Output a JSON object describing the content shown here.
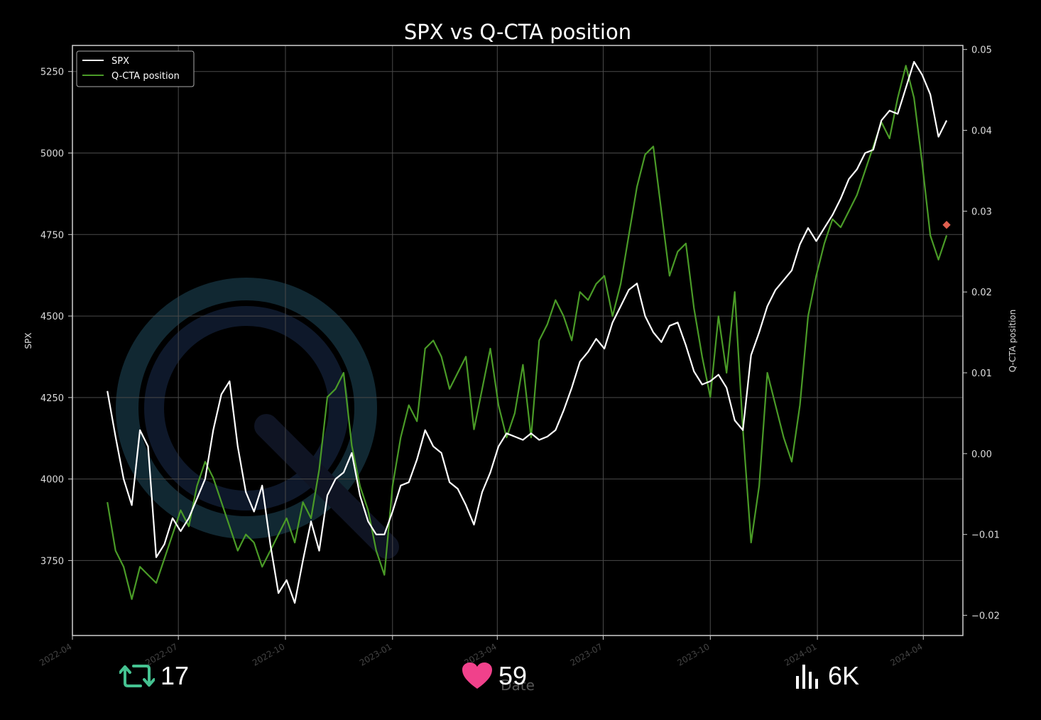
{
  "chart_data": {
    "type": "line",
    "title": "SPX vs Q-CTA position",
    "xlabel": "Date",
    "ylabel": "SPX",
    "y2label": "Q-CTA position",
    "xlim": [
      "2022-04-01",
      "2024-05-05"
    ],
    "ylim": [
      3520,
      5330
    ],
    "y2lim": [
      -0.0225,
      0.0505
    ],
    "x_ticks": [
      "2022-04",
      "2022-07",
      "2022-10",
      "2023-01",
      "2023-04",
      "2023-07",
      "2023-10",
      "2024-01",
      "2024-04"
    ],
    "y_ticks": [
      "3750",
      "4000",
      "4250",
      "4500",
      "4750",
      "5000",
      "5250"
    ],
    "y2_ticks": [
      "−0.02",
      "−0.01",
      "0.00",
      "0.01",
      "0.02",
      "0.03",
      "0.04",
      "0.05"
    ],
    "y_tick_values": [
      3750,
      4000,
      4250,
      4500,
      4750,
      5000,
      5250
    ],
    "y2_tick_values": [
      -0.02,
      -0.01,
      0,
      0.01,
      0.02,
      0.03,
      0.04,
      0.05
    ],
    "grid": true,
    "legend_position": "top-left",
    "background": "#000000",
    "series": [
      {
        "name": "SPX",
        "axis": "left",
        "color": "#ffffff",
        "x": [
          "2022-05-01",
          "2022-05-08",
          "2022-05-15",
          "2022-05-22",
          "2022-05-29",
          "2022-06-05",
          "2022-06-12",
          "2022-06-19",
          "2022-06-26",
          "2022-07-03",
          "2022-07-10",
          "2022-07-17",
          "2022-07-24",
          "2022-07-31",
          "2022-08-07",
          "2022-08-14",
          "2022-08-21",
          "2022-08-28",
          "2022-09-04",
          "2022-09-11",
          "2022-09-18",
          "2022-09-25",
          "2022-10-02",
          "2022-10-09",
          "2022-10-16",
          "2022-10-23",
          "2022-10-30",
          "2022-11-06",
          "2022-11-13",
          "2022-11-20",
          "2022-11-27",
          "2022-12-04",
          "2022-12-11",
          "2022-12-18",
          "2022-12-25",
          "2023-01-01",
          "2023-01-08",
          "2023-01-15",
          "2023-01-22",
          "2023-01-29",
          "2023-02-05",
          "2023-02-12",
          "2023-02-19",
          "2023-02-26",
          "2023-03-05",
          "2023-03-12",
          "2023-03-19",
          "2023-03-26",
          "2023-04-02",
          "2023-04-09",
          "2023-04-16",
          "2023-04-23",
          "2023-04-30",
          "2023-05-07",
          "2023-05-14",
          "2023-05-21",
          "2023-05-28",
          "2023-06-04",
          "2023-06-11",
          "2023-06-18",
          "2023-06-25",
          "2023-07-02",
          "2023-07-09",
          "2023-07-16",
          "2023-07-23",
          "2023-07-30",
          "2023-08-06",
          "2023-08-13",
          "2023-08-20",
          "2023-08-27",
          "2023-09-03",
          "2023-09-10",
          "2023-09-17",
          "2023-09-24",
          "2023-10-01",
          "2023-10-08",
          "2023-10-15",
          "2023-10-22",
          "2023-10-29",
          "2023-11-05",
          "2023-11-12",
          "2023-11-19",
          "2023-11-26",
          "2023-12-03",
          "2023-12-10",
          "2023-12-17",
          "2023-12-24",
          "2023-12-31",
          "2024-01-07",
          "2024-01-14",
          "2024-01-21",
          "2024-01-28",
          "2024-02-04",
          "2024-02-11",
          "2024-02-18",
          "2024-02-25",
          "2024-03-03",
          "2024-03-10",
          "2024-03-17",
          "2024-03-24",
          "2024-03-31",
          "2024-04-07",
          "2024-04-14",
          "2024-04-21"
        ],
        "values": [
          4270,
          4130,
          4000,
          3920,
          4150,
          4100,
          3760,
          3800,
          3880,
          3840,
          3880,
          3940,
          4000,
          4150,
          4260,
          4300,
          4100,
          3960,
          3900,
          3980,
          3800,
          3650,
          3690,
          3620,
          3750,
          3870,
          3780,
          3950,
          4000,
          4020,
          4080,
          3950,
          3870,
          3830,
          3830,
          3900,
          3980,
          3990,
          4060,
          4150,
          4100,
          4080,
          3990,
          3970,
          3920,
          3860,
          3960,
          4020,
          4100,
          4140,
          4130,
          4120,
          4140,
          4120,
          4130,
          4150,
          4210,
          4280,
          4360,
          4390,
          4430,
          4400,
          4480,
          4530,
          4580,
          4600,
          4500,
          4450,
          4420,
          4470,
          4480,
          4410,
          4330,
          4290,
          4300,
          4320,
          4280,
          4180,
          4150,
          4380,
          4450,
          4530,
          4580,
          4610,
          4640,
          4720,
          4770,
          4730,
          4770,
          4810,
          4860,
          4920,
          4950,
          5000,
          5010,
          5100,
          5130,
          5120,
          5200,
          5280,
          5240,
          5180,
          5050,
          5100
        ]
      },
      {
        "name": "Q-CTA position",
        "axis": "right",
        "color": "#4a9b27",
        "x": [
          "2022-05-01",
          "2022-05-08",
          "2022-05-15",
          "2022-05-22",
          "2022-05-29",
          "2022-06-05",
          "2022-06-12",
          "2022-06-19",
          "2022-06-26",
          "2022-07-03",
          "2022-07-10",
          "2022-07-17",
          "2022-07-24",
          "2022-07-31",
          "2022-08-07",
          "2022-08-14",
          "2022-08-21",
          "2022-08-28",
          "2022-09-04",
          "2022-09-11",
          "2022-09-18",
          "2022-09-25",
          "2022-10-02",
          "2022-10-09",
          "2022-10-16",
          "2022-10-23",
          "2022-10-30",
          "2022-11-06",
          "2022-11-13",
          "2022-11-20",
          "2022-11-27",
          "2022-12-04",
          "2022-12-11",
          "2022-12-18",
          "2022-12-25",
          "2023-01-01",
          "2023-01-08",
          "2023-01-15",
          "2023-01-22",
          "2023-01-29",
          "2023-02-05",
          "2023-02-12",
          "2023-02-19",
          "2023-02-26",
          "2023-03-05",
          "2023-03-12",
          "2023-03-19",
          "2023-03-26",
          "2023-04-02",
          "2023-04-09",
          "2023-04-16",
          "2023-04-23",
          "2023-04-30",
          "2023-05-07",
          "2023-05-14",
          "2023-05-21",
          "2023-05-28",
          "2023-06-04",
          "2023-06-11",
          "2023-06-18",
          "2023-06-25",
          "2023-07-02",
          "2023-07-09",
          "2023-07-16",
          "2023-07-23",
          "2023-07-30",
          "2023-08-06",
          "2023-08-13",
          "2023-08-20",
          "2023-08-27",
          "2023-09-03",
          "2023-09-10",
          "2023-09-17",
          "2023-09-24",
          "2023-10-01",
          "2023-10-08",
          "2023-10-15",
          "2023-10-22",
          "2023-10-29",
          "2023-11-05",
          "2023-11-12",
          "2023-11-19",
          "2023-11-26",
          "2023-12-03",
          "2023-12-10",
          "2023-12-17",
          "2023-12-24",
          "2023-12-31",
          "2024-01-07",
          "2024-01-14",
          "2024-01-21",
          "2024-01-28",
          "2024-02-04",
          "2024-02-11",
          "2024-02-18",
          "2024-02-25",
          "2024-03-03",
          "2024-03-10",
          "2024-03-17",
          "2024-03-24",
          "2024-03-31",
          "2024-04-07",
          "2024-04-14",
          "2024-04-21"
        ],
        "values": [
          -0.006,
          -0.012,
          -0.014,
          -0.018,
          -0.014,
          -0.015,
          -0.016,
          -0.013,
          -0.01,
          -0.007,
          -0.009,
          -0.004,
          -0.001,
          -0.003,
          -0.006,
          -0.009,
          -0.012,
          -0.01,
          -0.011,
          -0.014,
          -0.012,
          -0.01,
          -0.008,
          -0.011,
          -0.006,
          -0.008,
          -0.002,
          0.007,
          0.008,
          0.01,
          0.001,
          -0.004,
          -0.007,
          -0.012,
          -0.015,
          -0.004,
          0.002,
          0.006,
          0.004,
          0.013,
          0.014,
          0.012,
          0.008,
          0.01,
          0.012,
          0.003,
          0.008,
          0.013,
          0.006,
          0.002,
          0.005,
          0.011,
          0.002,
          0.014,
          0.016,
          0.019,
          0.017,
          0.014,
          0.02,
          0.019,
          0.021,
          0.022,
          0.017,
          0.021,
          0.027,
          0.033,
          0.037,
          0.038,
          0.03,
          0.022,
          0.025,
          0.026,
          0.018,
          0.012,
          0.007,
          0.017,
          0.01,
          0.02,
          0.003,
          -0.011,
          -0.004,
          0.01,
          0.006,
          0.002,
          -0.001,
          0.006,
          0.017,
          0.022,
          0.026,
          0.029,
          0.028,
          0.03,
          0.032,
          0.035,
          0.038,
          0.041,
          0.039,
          0.044,
          0.048,
          0.044,
          0.036,
          0.027,
          0.024,
          0.027
        ]
      }
    ],
    "marker": {
      "x": "2024-04-21",
      "axis": "right",
      "value": 0.0283,
      "color": "#e06050",
      "shape": "diamond"
    }
  },
  "overlay": {
    "retweet": {
      "icon": "retweet-icon",
      "count": "17",
      "color": "#45c291"
    },
    "like": {
      "icon": "heart-icon",
      "count": "59",
      "color": "#f0418b"
    },
    "views": {
      "icon": "bar-chart-icon",
      "count": "6K",
      "color": "#ffffff"
    }
  }
}
